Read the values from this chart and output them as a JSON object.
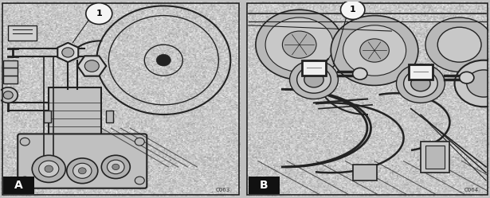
{
  "figure_width": 6.15,
  "figure_height": 2.49,
  "dpi": 100,
  "bg_color": "#c0c0c0",
  "panel_sep_color": "#aaaaaa",
  "drawing_bg": "#c8c8c8",
  "line_color": "#222222",
  "dark_color": "#111111",
  "mid_color": "#888888",
  "light_color": "#e0e0e0",
  "white_color": "#f5f5f5",
  "label_A": "A",
  "label_B": "B",
  "code_A": "C063",
  "code_B": "C064",
  "callout": "1"
}
